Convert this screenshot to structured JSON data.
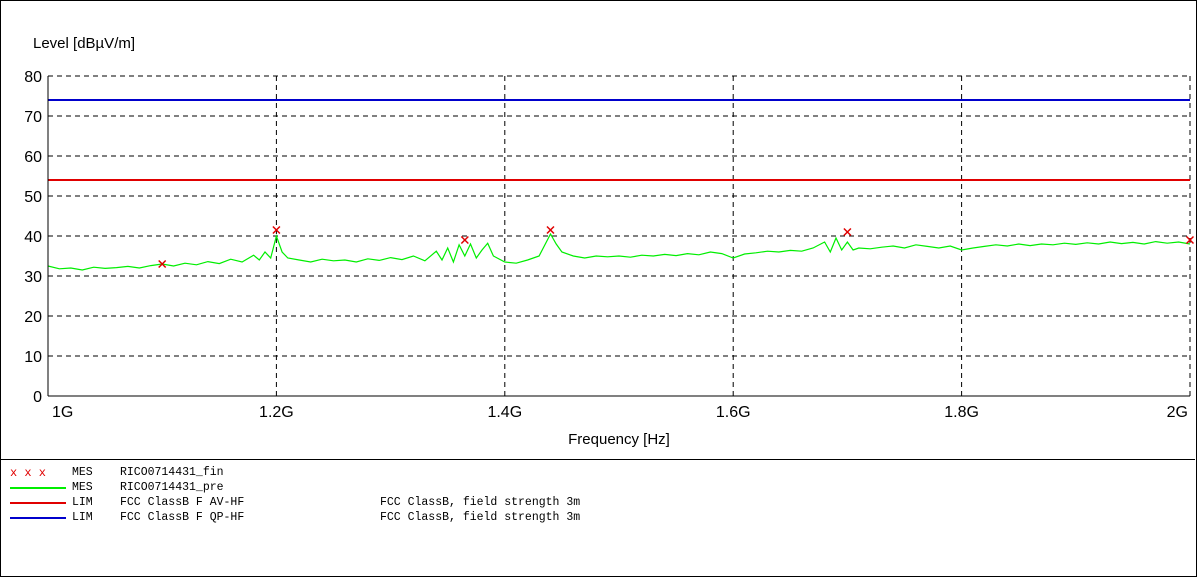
{
  "chart_data": {
    "type": "line",
    "ylabel": "Level [dBµV/m]",
    "xlabel": "Frequency [Hz]",
    "xlim": [
      1000000000,
      2000000000
    ],
    "ylim": [
      0,
      80
    ],
    "grid": true,
    "x_ticks": [
      {
        "value": 1000000000,
        "label": "1G"
      },
      {
        "value": 1200000000,
        "label": "1.2G"
      },
      {
        "value": 1400000000,
        "label": "1.4G"
      },
      {
        "value": 1600000000,
        "label": "1.6G"
      },
      {
        "value": 1800000000,
        "label": "1.8G"
      },
      {
        "value": 2000000000,
        "label": "2G"
      }
    ],
    "y_ticks": [
      0,
      10,
      20,
      30,
      40,
      50,
      60,
      70,
      80
    ],
    "limits": [
      {
        "name": "FCC ClassB F QP-HF",
        "value": 74,
        "color": "#0000cc"
      },
      {
        "name": "FCC ClassB F AV-HF",
        "value": 54,
        "color": "#e00000"
      }
    ],
    "pre_scan": {
      "name": "RICO0714431_pre",
      "color": "#00ee00",
      "points": [
        [
          1000000000,
          32.5
        ],
        [
          1010000000,
          31.8
        ],
        [
          1020000000,
          32.0
        ],
        [
          1030000000,
          31.5
        ],
        [
          1040000000,
          32.2
        ],
        [
          1050000000,
          31.9
        ],
        [
          1060000000,
          32.1
        ],
        [
          1070000000,
          32.4
        ],
        [
          1080000000,
          32.0
        ],
        [
          1090000000,
          32.6
        ],
        [
          1100000000,
          33.0
        ],
        [
          1110000000,
          32.5
        ],
        [
          1120000000,
          33.2
        ],
        [
          1130000000,
          32.8
        ],
        [
          1140000000,
          33.6
        ],
        [
          1150000000,
          33.1
        ],
        [
          1160000000,
          34.2
        ],
        [
          1170000000,
          33.5
        ],
        [
          1180000000,
          35.2
        ],
        [
          1185000000,
          34.0
        ],
        [
          1190000000,
          36.0
        ],
        [
          1195000000,
          34.5
        ],
        [
          1200000000,
          40.0
        ],
        [
          1205000000,
          36.0
        ],
        [
          1210000000,
          34.5
        ],
        [
          1220000000,
          34.0
        ],
        [
          1230000000,
          33.5
        ],
        [
          1240000000,
          34.2
        ],
        [
          1250000000,
          33.8
        ],
        [
          1260000000,
          34.0
        ],
        [
          1270000000,
          33.5
        ],
        [
          1280000000,
          34.3
        ],
        [
          1290000000,
          33.9
        ],
        [
          1300000000,
          34.6
        ],
        [
          1310000000,
          34.1
        ],
        [
          1320000000,
          35.0
        ],
        [
          1330000000,
          33.8
        ],
        [
          1340000000,
          36.2
        ],
        [
          1345000000,
          34.0
        ],
        [
          1350000000,
          37.0
        ],
        [
          1355000000,
          33.5
        ],
        [
          1360000000,
          37.8
        ],
        [
          1365000000,
          35.0
        ],
        [
          1370000000,
          38.0
        ],
        [
          1375000000,
          34.5
        ],
        [
          1380000000,
          36.5
        ],
        [
          1385000000,
          38.2
        ],
        [
          1390000000,
          35.0
        ],
        [
          1400000000,
          33.5
        ],
        [
          1410000000,
          33.2
        ],
        [
          1420000000,
          34.0
        ],
        [
          1430000000,
          35.0
        ],
        [
          1440000000,
          40.5
        ],
        [
          1445000000,
          38.0
        ],
        [
          1450000000,
          36.0
        ],
        [
          1460000000,
          35.0
        ],
        [
          1470000000,
          34.5
        ],
        [
          1480000000,
          35.0
        ],
        [
          1490000000,
          34.8
        ],
        [
          1500000000,
          35.0
        ],
        [
          1510000000,
          34.7
        ],
        [
          1520000000,
          35.2
        ],
        [
          1530000000,
          35.0
        ],
        [
          1540000000,
          35.4
        ],
        [
          1550000000,
          35.1
        ],
        [
          1560000000,
          35.6
        ],
        [
          1570000000,
          35.3
        ],
        [
          1580000000,
          36.0
        ],
        [
          1590000000,
          35.6
        ],
        [
          1600000000,
          34.5
        ],
        [
          1610000000,
          35.5
        ],
        [
          1620000000,
          35.8
        ],
        [
          1630000000,
          36.2
        ],
        [
          1640000000,
          36.0
        ],
        [
          1650000000,
          36.4
        ],
        [
          1660000000,
          36.2
        ],
        [
          1670000000,
          37.0
        ],
        [
          1680000000,
          38.5
        ],
        [
          1685000000,
          36.0
        ],
        [
          1690000000,
          39.5
        ],
        [
          1695000000,
          36.5
        ],
        [
          1700000000,
          38.5
        ],
        [
          1705000000,
          36.5
        ],
        [
          1710000000,
          37.0
        ],
        [
          1720000000,
          36.8
        ],
        [
          1730000000,
          37.2
        ],
        [
          1740000000,
          37.5
        ],
        [
          1750000000,
          37.0
        ],
        [
          1760000000,
          37.8
        ],
        [
          1770000000,
          37.4
        ],
        [
          1780000000,
          37.0
        ],
        [
          1790000000,
          37.5
        ],
        [
          1800000000,
          36.5
        ],
        [
          1810000000,
          37.0
        ],
        [
          1820000000,
          37.4
        ],
        [
          1830000000,
          37.8
        ],
        [
          1840000000,
          37.5
        ],
        [
          1850000000,
          38.0
        ],
        [
          1860000000,
          37.6
        ],
        [
          1870000000,
          38.0
        ],
        [
          1880000000,
          37.8
        ],
        [
          1890000000,
          38.2
        ],
        [
          1900000000,
          37.9
        ],
        [
          1910000000,
          38.3
        ],
        [
          1920000000,
          38.0
        ],
        [
          1930000000,
          38.5
        ],
        [
          1940000000,
          38.1
        ],
        [
          1950000000,
          38.4
        ],
        [
          1960000000,
          38.0
        ],
        [
          1970000000,
          38.6
        ],
        [
          1980000000,
          38.2
        ],
        [
          1990000000,
          38.5
        ],
        [
          2000000000,
          38.0
        ]
      ]
    },
    "final_measurements": {
      "name": "RICO0714431_fin",
      "color": "#e00000",
      "points": [
        [
          1100000000,
          33
        ],
        [
          1200000000,
          41.5
        ],
        [
          1365000000,
          39
        ],
        [
          1440000000,
          41.5
        ],
        [
          1700000000,
          41
        ],
        [
          2000000000,
          39
        ]
      ]
    }
  },
  "legend": [
    {
      "marker": "x x x",
      "type": "MES",
      "name": "RICO0714431_fin",
      "description": "",
      "color": "#e00000",
      "style": "markers"
    },
    {
      "marker": "",
      "type": "MES",
      "name": "RICO0714431_pre",
      "description": "",
      "color": "#00ee00",
      "style": "line"
    },
    {
      "marker": "",
      "type": "LIM",
      "name": "FCC ClassB F AV-HF",
      "description": "FCC ClassB, field strength 3m",
      "color": "#e00000",
      "style": "line"
    },
    {
      "marker": "",
      "type": "LIM",
      "name": "FCC ClassB F QP-HF",
      "description": "FCC ClassB, field strength 3m",
      "color": "#0000cc",
      "style": "line"
    }
  ]
}
